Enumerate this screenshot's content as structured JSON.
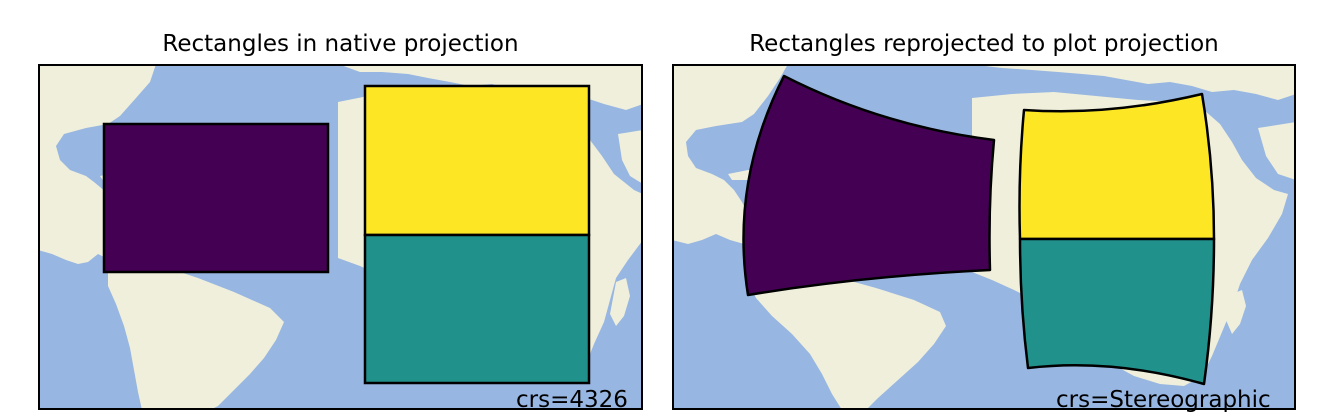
{
  "colors": {
    "ocean": "#97b6e1",
    "land": "#efefdb",
    "purple": "#440154",
    "yellow": "#fde725",
    "teal": "#21918c",
    "outline": "#000000"
  },
  "panels": [
    {
      "title": "Rectangles in native projection",
      "crs_label": "crs=4326",
      "map_content": [
        "North America",
        "South America",
        "Africa",
        "Europe",
        "Atlantic Ocean"
      ]
    },
    {
      "title": "Rectangles reprojected to plot projection",
      "crs_label": "crs=Stereographic",
      "map_content": [
        "North America",
        "South America",
        "Africa",
        "Europe",
        "Atlantic Ocean"
      ]
    }
  ]
}
